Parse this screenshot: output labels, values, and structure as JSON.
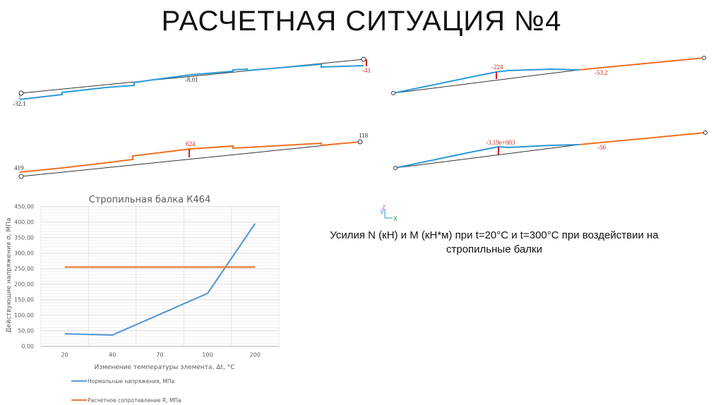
{
  "title": "РАСЧЕТНАЯ СИТУАЦИЯ №4",
  "caption": "Усилия N (кН) и М (кН*м) при t=20°С и t=300°С при воздействии на стропильные балки",
  "diagrams": {
    "top_left_labels": [
      "-32.1",
      "-8.01",
      "-41"
    ],
    "bottom_left_labels": [
      "419",
      "624",
      "118"
    ],
    "top_right_labels": [
      "-224",
      "-53.2"
    ],
    "bottom_right_labels": [
      "-3.19e+003",
      "-56"
    ],
    "axis_labels": [
      "Y",
      "Z",
      "X"
    ]
  },
  "colors": {
    "blue": "#2a9ad8",
    "orange": "#f07020",
    "red": "#d02020",
    "chart_blue": "#5b9bd5",
    "chart_orange": "#ed7d31"
  },
  "chart_data": {
    "type": "line",
    "title": "Стропильная балка К464",
    "xlabel": "Изменение температуры элемента, Δt, °С",
    "ylabel": "Действующие напряжения σ, МПа",
    "categories": [
      "20",
      "40",
      "70",
      "100",
      "200"
    ],
    "ylim": [
      0,
      450
    ],
    "yticks": [
      "0,00",
      "50,00",
      "100,00",
      "150,00",
      "200,00",
      "250,00",
      "300,00",
      "350,00",
      "400,00",
      "450,00"
    ],
    "grid": true,
    "legend": "bottom",
    "series": [
      {
        "name": "Нормальные напряжения, МПа",
        "values": [
          40,
          36,
          103,
          170,
          395
        ],
        "color": "#5b9bd5"
      },
      {
        "name": "Расчетное сопротивление R, МПа",
        "values": [
          255,
          255,
          255,
          255,
          255
        ],
        "color": "#ed7d31"
      }
    ]
  }
}
